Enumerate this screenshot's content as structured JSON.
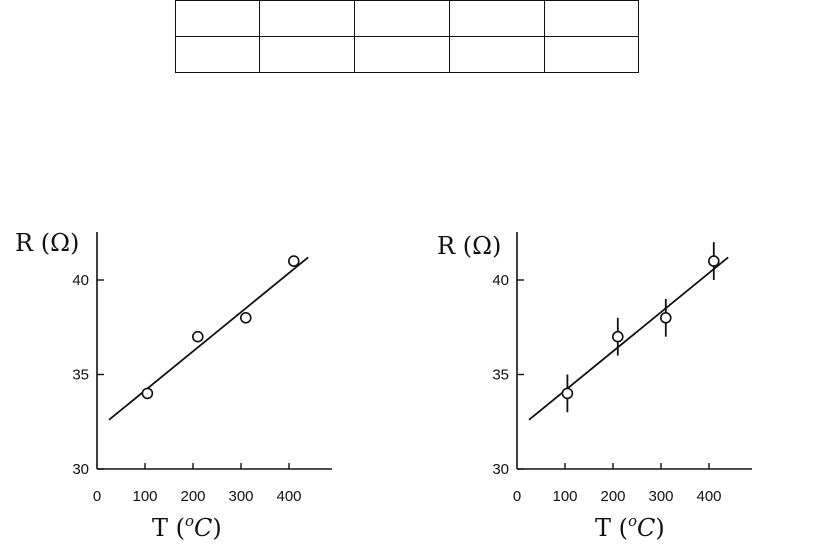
{
  "table": {
    "rows": [
      [
        "",
        "",
        "",
        "",
        ""
      ],
      [
        "",
        "",
        "",
        "",
        ""
      ]
    ]
  },
  "chart_data": [
    {
      "type": "scatter",
      "ylabel": "R (Ω)",
      "xlabel_main": "T",
      "xlabel_unit_open": "(",
      "xlabel_unit_sup": "o",
      "xlabel_unit_main": "C",
      "xlabel_unit_close": ")",
      "xlim": [
        0,
        450
      ],
      "ylim": [
        30,
        42.5
      ],
      "xticks": [
        0,
        100,
        200,
        300,
        400
      ],
      "yticks": [
        30,
        35,
        40
      ],
      "points": [
        {
          "x": 105,
          "y": 34
        },
        {
          "x": 210,
          "y": 37
        },
        {
          "x": 310,
          "y": 38
        },
        {
          "x": 410,
          "y": 41
        }
      ],
      "error_bars": false,
      "fit_line": {
        "x": [
          25,
          440
        ],
        "y": [
          32.6,
          41.2
        ]
      }
    },
    {
      "type": "scatter",
      "ylabel": "R (Ω)",
      "xlabel_main": "T",
      "xlabel_unit_open": "(",
      "xlabel_unit_sup": "o",
      "xlabel_unit_main": "C",
      "xlabel_unit_close": ")",
      "xlim": [
        0,
        450
      ],
      "ylim": [
        30,
        42.5
      ],
      "xticks": [
        0,
        100,
        200,
        300,
        400
      ],
      "yticks": [
        30,
        35,
        40
      ],
      "points": [
        {
          "x": 105,
          "y": 34,
          "err": 1
        },
        {
          "x": 210,
          "y": 37,
          "err": 1
        },
        {
          "x": 310,
          "y": 38,
          "err": 1
        },
        {
          "x": 410,
          "y": 41,
          "err": 1
        }
      ],
      "error_bars": true,
      "fit_line": {
        "x": [
          25,
          440
        ],
        "y": [
          32.6,
          41.2
        ]
      }
    }
  ]
}
